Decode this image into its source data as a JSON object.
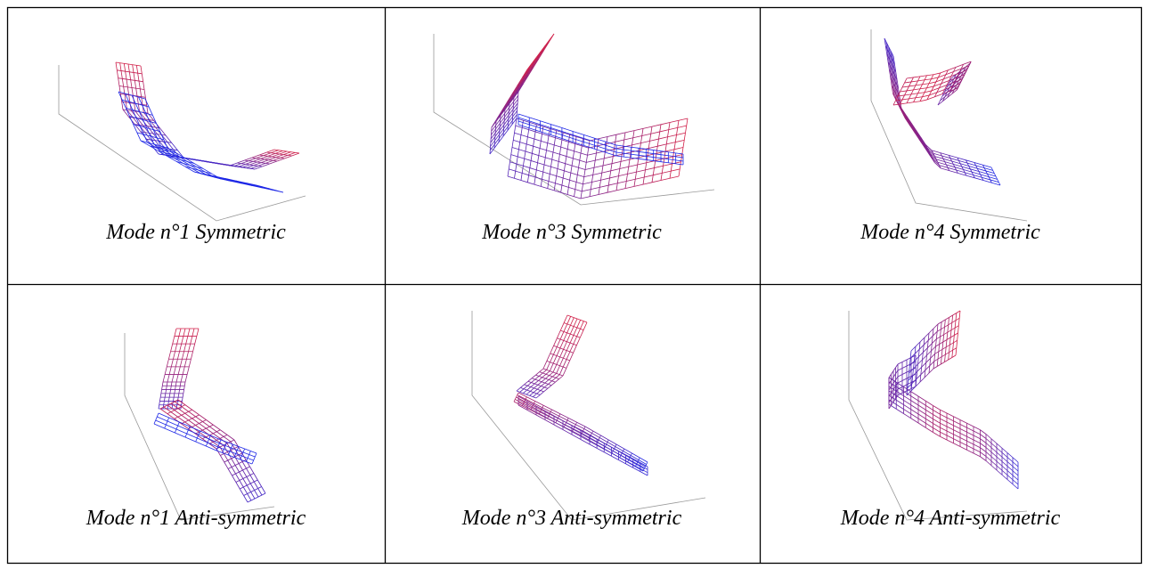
{
  "table": {
    "rows": [
      [
        "Mode n°1 Symmetric",
        "Mode n°3 Symmetric",
        "Mode n°4 Symmetric"
      ],
      [
        "Mode n°1 Anti-symmetric",
        "Mode n°3 Anti-symmetric",
        "Mode n°4 Anti-symmetric"
      ]
    ]
  }
}
